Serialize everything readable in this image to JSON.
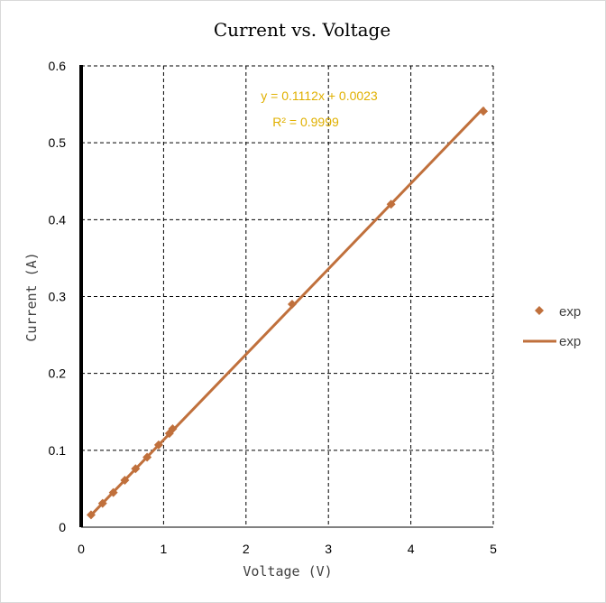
{
  "chart_data": {
    "type": "scatter",
    "title": "Current vs. Voltage",
    "xlabel": "Voltage (V)",
    "ylabel": "Current (A)",
    "xlim": [
      0,
      5
    ],
    "ylim": [
      0,
      0.6
    ],
    "x_ticks": [
      "0",
      "1",
      "2",
      "3",
      "4",
      "5"
    ],
    "y_ticks": [
      "0",
      "0.1",
      "0.2",
      "0.3",
      "0.4",
      "0.5",
      "0.6"
    ],
    "grid": "dashed",
    "legend_position": "right",
    "series": [
      {
        "name": "exp",
        "kind": "markers",
        "marker": "diamond",
        "color": "#c0703c",
        "x": [
          0.12,
          0.26,
          0.39,
          0.53,
          0.66,
          0.8,
          0.94,
          1.07,
          1.11,
          2.56,
          3.76,
          4.88
        ],
        "y": [
          0.016,
          0.031,
          0.045,
          0.061,
          0.076,
          0.091,
          0.107,
          0.122,
          0.128,
          0.29,
          0.42,
          0.541
        ]
      },
      {
        "name": "exp",
        "kind": "trendline",
        "color": "#c0703c",
        "slope": 0.1112,
        "intercept": 0.0023,
        "x_range": [
          0.12,
          4.88
        ]
      }
    ],
    "annotations": [
      "y = 0.1112x + 0.0023",
      "R² = 0.9999"
    ],
    "colors": {
      "series": "#c0703c",
      "annotation": "#e0b000",
      "grid": "#000000"
    }
  }
}
